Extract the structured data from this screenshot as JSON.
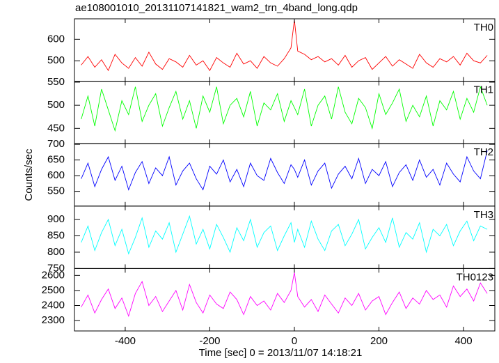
{
  "chart_data": [
    {
      "type": "line",
      "title": "ae108001010_20131107141821_wam2_trn_4band_long.qdp",
      "label": "TH0",
      "color": "#ff0000",
      "xlim": [
        -520,
        474
      ],
      "xticks": [
        -400,
        -200,
        0,
        200,
        400
      ],
      "ylim": [
        405,
        695
      ],
      "yticks": [
        500,
        600
      ],
      "x": [
        -504,
        -488,
        -472,
        -456,
        -440,
        -424,
        -408,
        -392,
        -376,
        -360,
        -344,
        -328,
        -312,
        -296,
        -280,
        -264,
        -248,
        -232,
        -216,
        -200,
        -184,
        -168,
        -152,
        -136,
        -120,
        -104,
        -88,
        -72,
        -56,
        -40,
        -24,
        -8,
        0,
        8,
        24,
        40,
        56,
        72,
        88,
        104,
        120,
        136,
        152,
        168,
        184,
        200,
        216,
        232,
        248,
        264,
        280,
        296,
        312,
        328,
        344,
        360,
        376,
        392,
        408,
        424,
        440,
        456
      ],
      "values": [
        480,
        520,
        470,
        505,
        455,
        530,
        490,
        465,
        515,
        475,
        540,
        485,
        460,
        510,
        495,
        470,
        525,
        480,
        500,
        455,
        515,
        490,
        470,
        535,
        485,
        500,
        465,
        520,
        490,
        475,
        510,
        560,
        690,
        545,
        530,
        505,
        520,
        495,
        510,
        480,
        525,
        470,
        500,
        515,
        460,
        490,
        520,
        475,
        505,
        485,
        465,
        530,
        490,
        470,
        510,
        495,
        520,
        480,
        535,
        500,
        490,
        525
      ]
    },
    {
      "type": "line",
      "label": "TH1",
      "color": "#00ff00",
      "xlim": [
        -520,
        474
      ],
      "xticks": [
        -400,
        -200,
        0,
        200,
        400
      ],
      "ylim": [
        417,
        552
      ],
      "yticks": [
        450,
        500,
        550
      ],
      "x": [
        -504,
        -488,
        -472,
        -456,
        -440,
        -424,
        -408,
        -392,
        -376,
        -360,
        -344,
        -328,
        -312,
        -296,
        -280,
        -264,
        -248,
        -232,
        -216,
        -200,
        -184,
        -168,
        -152,
        -136,
        -120,
        -104,
        -88,
        -72,
        -56,
        -40,
        -24,
        -8,
        0,
        8,
        24,
        40,
        56,
        72,
        88,
        104,
        120,
        136,
        152,
        168,
        184,
        200,
        216,
        232,
        248,
        264,
        280,
        296,
        312,
        328,
        344,
        360,
        376,
        392,
        408,
        424,
        440,
        456
      ],
      "values": [
        470,
        520,
        455,
        535,
        490,
        445,
        510,
        480,
        540,
        465,
        500,
        525,
        455,
        495,
        530,
        470,
        510,
        450,
        520,
        485,
        540,
        460,
        500,
        515,
        475,
        530,
        455,
        505,
        490,
        525,
        465,
        510,
        495,
        480,
        535,
        455,
        500,
        520,
        470,
        540,
        485,
        460,
        515,
        495,
        450,
        525,
        480,
        505,
        535,
        465,
        500,
        475,
        520,
        455,
        510,
        490,
        530,
        470,
        515,
        485,
        540,
        500
      ]
    },
    {
      "type": "line",
      "label": "TH2",
      "ylabel": "Counts/sec",
      "color": "#0000ff",
      "xlim": [
        -520,
        474
      ],
      "xticks": [
        -400,
        -200,
        0,
        200,
        400
      ],
      "ylim": [
        503,
        702
      ],
      "yticks": [
        550,
        600,
        650,
        700
      ],
      "x": [
        -504,
        -488,
        -472,
        -456,
        -440,
        -424,
        -408,
        -392,
        -376,
        -360,
        -344,
        -328,
        -312,
        -296,
        -280,
        -264,
        -248,
        -232,
        -216,
        -200,
        -184,
        -168,
        -152,
        -136,
        -120,
        -104,
        -88,
        -72,
        -56,
        -40,
        -24,
        -8,
        0,
        8,
        24,
        40,
        56,
        72,
        88,
        104,
        120,
        136,
        152,
        168,
        184,
        200,
        216,
        232,
        248,
        264,
        280,
        296,
        312,
        328,
        344,
        360,
        376,
        392,
        408,
        424,
        440,
        456
      ],
      "values": [
        590,
        640,
        565,
        620,
        660,
        585,
        630,
        555,
        610,
        645,
        575,
        625,
        600,
        660,
        570,
        615,
        640,
        590,
        555,
        630,
        605,
        650,
        580,
        620,
        565,
        640,
        600,
        585,
        655,
        610,
        575,
        635,
        620,
        595,
        650,
        570,
        615,
        640,
        560,
        605,
        630,
        590,
        655,
        575,
        620,
        600,
        645,
        565,
        610,
        635,
        585,
        650,
        595,
        620,
        570,
        640,
        605,
        580,
        660,
        615,
        590,
        680
      ]
    },
    {
      "type": "line",
      "label": "TH3",
      "color": "#00ffff",
      "xlim": [
        -520,
        474
      ],
      "xticks": [
        -400,
        -200,
        0,
        200,
        400
      ],
      "ylim": [
        750,
        941
      ],
      "yticks": [
        750,
        800,
        850,
        900
      ],
      "x": [
        -504,
        -488,
        -472,
        -456,
        -440,
        -424,
        -408,
        -392,
        -376,
        -360,
        -344,
        -328,
        -312,
        -296,
        -280,
        -264,
        -248,
        -232,
        -216,
        -200,
        -184,
        -168,
        -152,
        -136,
        -120,
        -104,
        -88,
        -72,
        -56,
        -40,
        -24,
        -8,
        0,
        8,
        24,
        40,
        56,
        72,
        88,
        104,
        120,
        136,
        152,
        168,
        184,
        200,
        216,
        232,
        248,
        264,
        280,
        296,
        312,
        328,
        344,
        360,
        376,
        392,
        408,
        424,
        440,
        456
      ],
      "values": [
        830,
        880,
        805,
        860,
        900,
        820,
        870,
        795,
        845,
        905,
        815,
        865,
        840,
        890,
        800,
        855,
        910,
        825,
        870,
        810,
        885,
        845,
        800,
        875,
        835,
        900,
        815,
        860,
        880,
        805,
        850,
        890,
        830,
        870,
        815,
        895,
        840,
        805,
        865,
        885,
        820,
        855,
        900,
        810,
        845,
        875,
        830,
        905,
        815,
        860,
        840,
        890,
        800,
        870,
        850,
        885,
        820,
        865,
        895,
        835,
        880,
        870
      ]
    },
    {
      "type": "line",
      "label": "TH0123",
      "xlabel": "Time [sec] 0 = 2013/11/07 14:18:21",
      "color": "#ff00ff",
      "xlim": [
        -520,
        474
      ],
      "xticks": [
        -400,
        -200,
        0,
        200,
        400
      ],
      "ylim": [
        2231,
        2646
      ],
      "yticks": [
        2300,
        2400,
        2500,
        2600
      ],
      "x": [
        -504,
        -488,
        -472,
        -456,
        -440,
        -424,
        -408,
        -392,
        -376,
        -360,
        -344,
        -328,
        -312,
        -296,
        -280,
        -264,
        -248,
        -232,
        -216,
        -200,
        -184,
        -168,
        -152,
        -136,
        -120,
        -104,
        -88,
        -72,
        -56,
        -40,
        -24,
        -8,
        0,
        8,
        24,
        40,
        56,
        72,
        88,
        104,
        120,
        136,
        152,
        168,
        184,
        200,
        216,
        232,
        248,
        264,
        280,
        296,
        312,
        328,
        344,
        360,
        376,
        392,
        408,
        424,
        440,
        456
      ],
      "values": [
        2390,
        2470,
        2350,
        2440,
        2510,
        2380,
        2450,
        2330,
        2480,
        2560,
        2400,
        2460,
        2360,
        2430,
        2500,
        2370,
        2540,
        2420,
        2350,
        2470,
        2410,
        2380,
        2490,
        2440,
        2340,
        2460,
        2400,
        2430,
        2370,
        2480,
        2420,
        2500,
        2620,
        2460,
        2390,
        2440,
        2360,
        2470,
        2410,
        2350,
        2450,
        2400,
        2480,
        2370,
        2430,
        2460,
        2340,
        2420,
        2490,
        2380,
        2450,
        2410,
        2500,
        2440,
        2470,
        2390,
        2530,
        2460,
        2510,
        2430,
        2550,
        2480
      ]
    }
  ]
}
